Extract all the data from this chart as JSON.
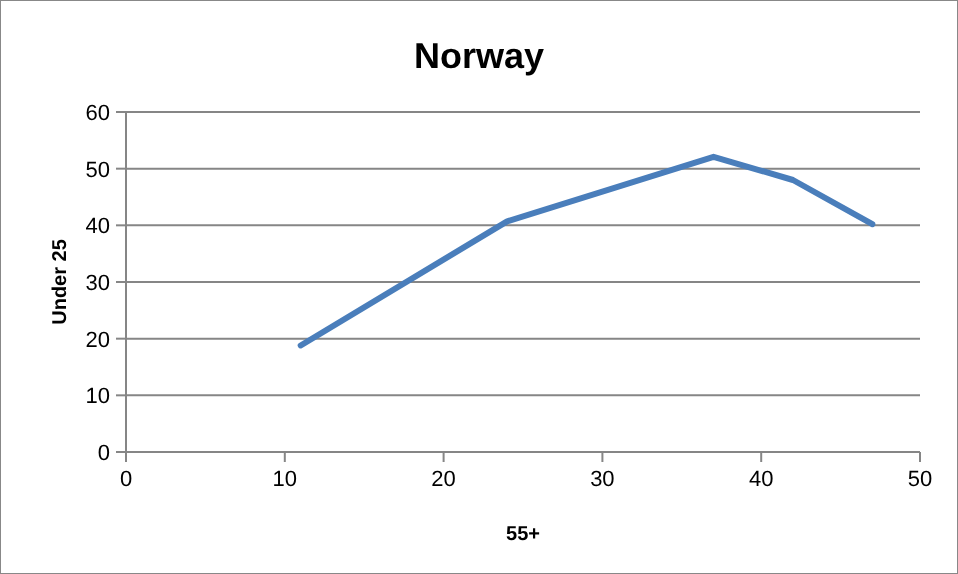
{
  "chart_data": {
    "type": "line",
    "title": "Norway",
    "xlabel": "55+",
    "ylabel": "Under 25",
    "x": [
      11,
      24,
      37,
      42,
      47
    ],
    "series": [
      {
        "color": "#4a7ebb",
        "values": [
          18.8,
          40.7,
          52.1,
          48,
          40.2
        ]
      }
    ],
    "xlim": [
      0,
      50
    ],
    "xticks": [
      0,
      10,
      20,
      30,
      40,
      50
    ],
    "ylim": [
      0,
      60
    ],
    "yticks": [
      0,
      10,
      20,
      30,
      40,
      50,
      60
    ],
    "grid": "y",
    "marker": "none",
    "line_style": "solid"
  }
}
